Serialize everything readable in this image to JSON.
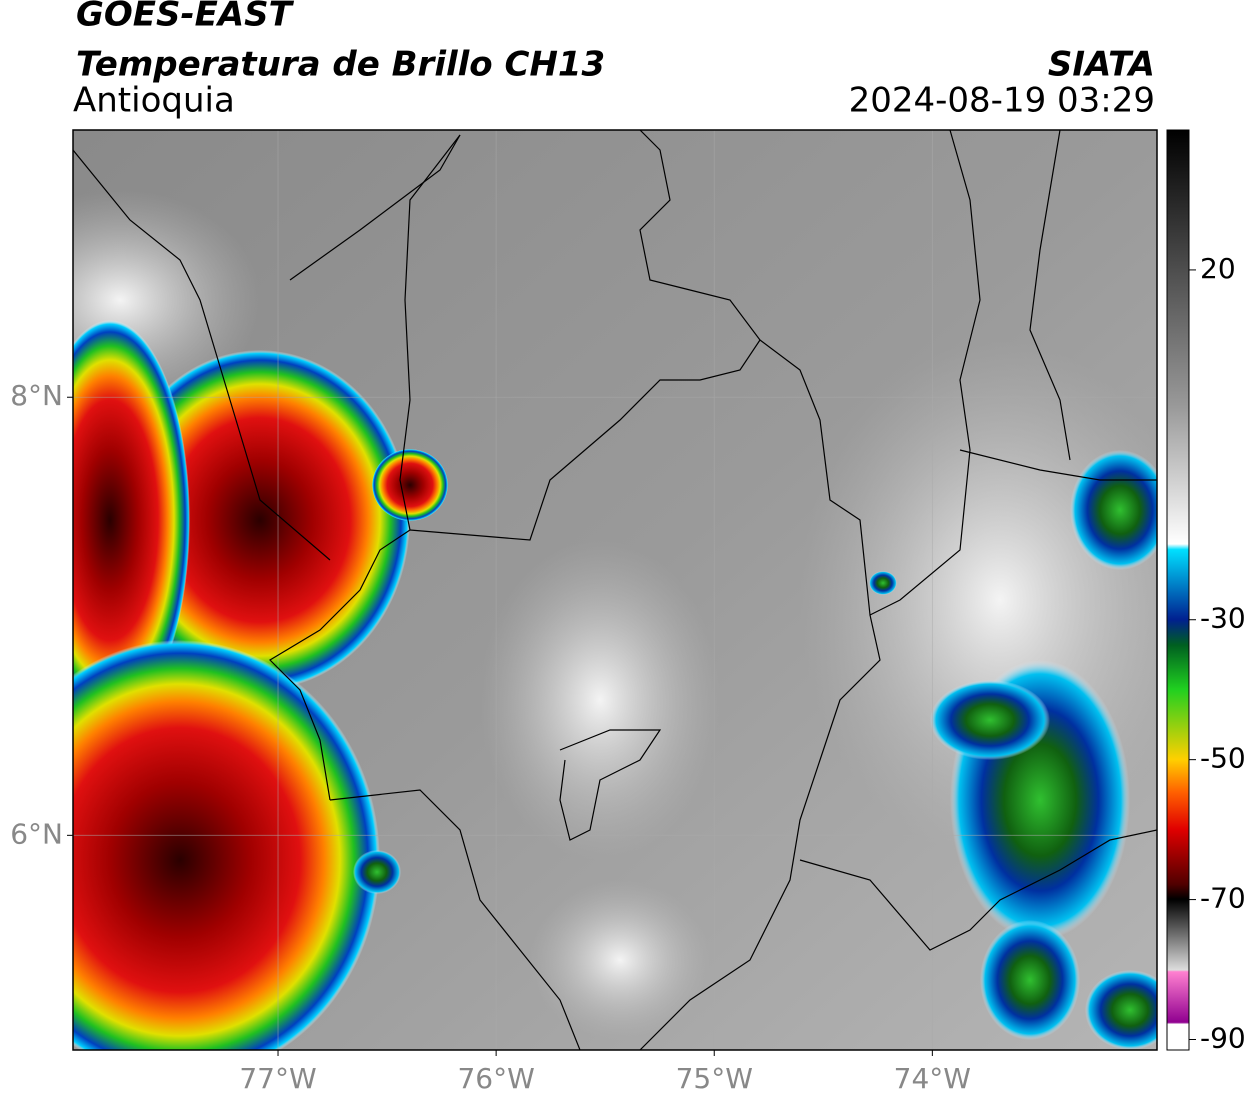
{
  "header": {
    "title": "GOES-EAST",
    "subtitle": "Temperatura de Brillo CH13",
    "region": "Antioquia",
    "source": "SIATA",
    "datetime": "2024-08-19 03:29"
  },
  "map": {
    "xlim": [
      -77.94,
      -72.97
    ],
    "ylim": [
      5.02,
      9.22
    ],
    "xticks": [
      {
        "value": -77,
        "label": "77°W"
      },
      {
        "value": -76,
        "label": "76°W"
      },
      {
        "value": -75,
        "label": "75°W"
      },
      {
        "value": -74,
        "label": "74°W"
      }
    ],
    "yticks": [
      {
        "value": 8,
        "label": "8°N"
      },
      {
        "value": 6,
        "label": "6°N"
      }
    ]
  },
  "colorbar": {
    "lim": [
      -91.5,
      40
    ],
    "ticks": [
      20,
      -30,
      -50,
      -70,
      -90
    ]
  }
}
